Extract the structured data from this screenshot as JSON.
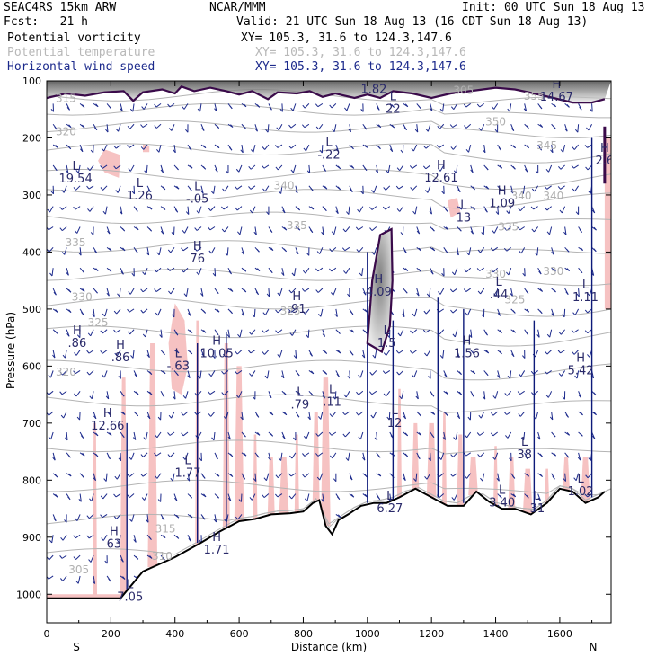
{
  "header": {
    "model": "SEAC4RS 15km ARW",
    "fcst": "Fcst:   21 h",
    "org": "NCAR/MMM",
    "init": "Init: 00 UTC Sun 18 Aug 13",
    "valid": "Valid: 21 UTC Sun 18 Aug 13 (16 CDT Sun 18 Aug 13)"
  },
  "legend": [
    {
      "name": "Potential vorticity",
      "xy": "XY= 105.3, 31.6 to 124.3,147.6",
      "color": "#000000"
    },
    {
      "name": "Potential temperature",
      "xy": "XY= 105.3, 31.6 to 124.3,147.6",
      "color": "#b8b8b8"
    },
    {
      "name": "Horizontal wind speed",
      "xy": "XY= 105.3, 31.6 to 124.3,147.6",
      "color": "#1c2a8c"
    }
  ],
  "chart_data": {
    "type": "cross-section",
    "xlabel": "Distance (km)",
    "ylabel": "Pressure (hPa)",
    "xlim": [
      0,
      1760
    ],
    "ylim": [
      100,
      1050
    ],
    "x_ticks": [
      0,
      200,
      400,
      600,
      800,
      1000,
      1200,
      1400,
      1600
    ],
    "y_ticks": [
      100,
      200,
      300,
      400,
      500,
      600,
      700,
      800,
      900,
      1000
    ],
    "endpoint_labels": {
      "left": "S",
      "right": "N"
    },
    "terrain_hPa": [
      [
        0,
        1007
      ],
      [
        150,
        1007
      ],
      [
        230,
        1007
      ],
      [
        300,
        960
      ],
      [
        400,
        935
      ],
      [
        480,
        910
      ],
      [
        540,
        890
      ],
      [
        600,
        872
      ],
      [
        650,
        868
      ],
      [
        700,
        860
      ],
      [
        760,
        858
      ],
      [
        800,
        855
      ],
      [
        830,
        840
      ],
      [
        850,
        835
      ],
      [
        870,
        880
      ],
      [
        890,
        895
      ],
      [
        910,
        870
      ],
      [
        940,
        860
      ],
      [
        980,
        845
      ],
      [
        1020,
        840
      ],
      [
        1060,
        840
      ],
      [
        1100,
        830
      ],
      [
        1150,
        815
      ],
      [
        1200,
        830
      ],
      [
        1250,
        845
      ],
      [
        1300,
        845
      ],
      [
        1340,
        820
      ],
      [
        1380,
        838
      ],
      [
        1420,
        850
      ],
      [
        1460,
        850
      ],
      [
        1510,
        860
      ],
      [
        1560,
        840
      ],
      [
        1600,
        815
      ],
      [
        1640,
        820
      ],
      [
        1680,
        840
      ],
      [
        1720,
        830
      ],
      [
        1740,
        820
      ]
    ],
    "pv_contour_hPa": [
      [
        0,
        130
      ],
      [
        60,
        122
      ],
      [
        120,
        126
      ],
      [
        180,
        120
      ],
      [
        240,
        118
      ],
      [
        270,
        135
      ],
      [
        300,
        120
      ],
      [
        360,
        115
      ],
      [
        400,
        122
      ],
      [
        420,
        110
      ],
      [
        460,
        118
      ],
      [
        510,
        112
      ],
      [
        560,
        118
      ],
      [
        600,
        124
      ],
      [
        640,
        118
      ],
      [
        690,
        132
      ],
      [
        720,
        120
      ],
      [
        780,
        122
      ],
      [
        820,
        118
      ],
      [
        860,
        128
      ],
      [
        900,
        122
      ],
      [
        960,
        130
      ],
      [
        1000,
        124
      ],
      [
        1040,
        130
      ],
      [
        1080,
        118
      ],
      [
        1140,
        122
      ],
      [
        1200,
        130
      ],
      [
        1260,
        122
      ],
      [
        1320,
        118
      ],
      [
        1400,
        112
      ],
      [
        1460,
        115
      ],
      [
        1520,
        122
      ],
      [
        1580,
        130
      ],
      [
        1640,
        138
      ],
      [
        1700,
        138
      ],
      [
        1740,
        132
      ]
    ],
    "pv_blob_hPa": [
      [
        1000,
        560
      ],
      [
        1015,
        450
      ],
      [
        1040,
        370
      ],
      [
        1075,
        360
      ],
      [
        1078,
        450
      ],
      [
        1070,
        530
      ],
      [
        1045,
        575
      ]
    ],
    "theta_labels": [
      {
        "text": "315",
        "x": 60,
        "p": 137
      },
      {
        "text": "320",
        "x": 60,
        "p": 195
      },
      {
        "text": "320",
        "x": 60,
        "p": 617
      },
      {
        "text": "325",
        "x": 160,
        "p": 530
      },
      {
        "text": "330",
        "x": 110,
        "p": 485
      },
      {
        "text": "335",
        "x": 90,
        "p": 390
      },
      {
        "text": "340",
        "x": 740,
        "p": 290
      },
      {
        "text": "335",
        "x": 780,
        "p": 360
      },
      {
        "text": "325",
        "x": 760,
        "p": 510
      },
      {
        "text": "330",
        "x": 1400,
        "p": 445
      },
      {
        "text": "330",
        "x": 1580,
        "p": 440
      },
      {
        "text": "325",
        "x": 1460,
        "p": 490
      },
      {
        "text": "335",
        "x": 1440,
        "p": 362
      },
      {
        "text": "340",
        "x": 1480,
        "p": 308
      },
      {
        "text": "340",
        "x": 1580,
        "p": 308
      },
      {
        "text": "345",
        "x": 1560,
        "p": 220
      },
      {
        "text": "350",
        "x": 1400,
        "p": 178
      },
      {
        "text": "355",
        "x": 1520,
        "p": 133
      },
      {
        "text": "305",
        "x": 1300,
        "p": 123
      },
      {
        "text": "315",
        "x": 370,
        "p": 892
      },
      {
        "text": "310",
        "x": 360,
        "p": 940
      },
      {
        "text": "305",
        "x": 100,
        "p": 963
      }
    ],
    "hl_labels": [
      {
        "type": "L",
        "value": "1.82",
        "x": 1020,
        "p": 115
      },
      {
        "type": "L",
        "value": "22",
        "x": 1080,
        "p": 150
      },
      {
        "type": "H",
        "value": "14.67",
        "x": 1590,
        "p": 128
      },
      {
        "type": "L",
        "value": "-.22",
        "x": 880,
        "p": 230
      },
      {
        "type": "H",
        "value": "12.61",
        "x": 1230,
        "p": 270
      },
      {
        "type": "H",
        "value": "2.6",
        "x": 1740,
        "p": 240
      },
      {
        "type": "L",
        "value": "19.54",
        "x": 90,
        "p": 272
      },
      {
        "type": "L",
        "value": "1.26",
        "x": 290,
        "p": 302
      },
      {
        "type": "L",
        "value": "-.05",
        "x": 470,
        "p": 307
      },
      {
        "type": "H",
        "value": "1.09",
        "x": 1420,
        "p": 315
      },
      {
        "type": "L",
        "value": "13",
        "x": 1300,
        "p": 340
      },
      {
        "type": "H",
        "value": "76",
        "x": 470,
        "p": 412
      },
      {
        "type": "H",
        "value": "4.09",
        "x": 1035,
        "p": 470
      },
      {
        "type": "L",
        "value": ".44",
        "x": 1410,
        "p": 475
      },
      {
        "type": "H",
        "value": ".91",
        "x": 780,
        "p": 500
      },
      {
        "type": "L",
        "value": "1.11",
        "x": 1680,
        "p": 480
      },
      {
        "type": "H",
        "value": ".86",
        "x": 95,
        "p": 560
      },
      {
        "type": "H",
        "value": ".86",
        "x": 230,
        "p": 585
      },
      {
        "type": "L",
        "value": "1.5",
        "x": 1060,
        "p": 560
      },
      {
        "type": "H",
        "value": "1.56",
        "x": 1310,
        "p": 578
      },
      {
        "type": "H",
        "value": "10.05",
        "x": 530,
        "p": 578
      },
      {
        "type": "L",
        "value": "-.63",
        "x": 410,
        "p": 600
      },
      {
        "type": "H",
        "value": "5.42",
        "x": 1665,
        "p": 608
      },
      {
        "type": "L",
        "value": ".79",
        "x": 790,
        "p": 668
      },
      {
        "type": "L",
        "value": ".11",
        "x": 890,
        "p": 663
      },
      {
        "type": "L",
        "value": "12",
        "x": 1085,
        "p": 700
      },
      {
        "type": "H",
        "value": "12.66",
        "x": 190,
        "p": 705
      },
      {
        "type": "L",
        "value": "38",
        "x": 1490,
        "p": 755
      },
      {
        "type": "L",
        "value": "1.77",
        "x": 440,
        "p": 788
      },
      {
        "type": "L",
        "value": "1.02",
        "x": 1665,
        "p": 820
      },
      {
        "type": "L",
        "value": "3.40",
        "x": 1420,
        "p": 840
      },
      {
        "type": "L",
        "value": "6.27",
        "x": 1070,
        "p": 850
      },
      {
        "type": "H",
        "value": "63",
        "x": 210,
        "p": 912
      },
      {
        "type": "H",
        "value": "1.71",
        "x": 530,
        "p": 922
      },
      {
        "type": "L",
        "value": "7.05",
        "x": 260,
        "p": 1005
      },
      {
        "type": "L",
        "value": "31",
        "x": 1530,
        "p": 850
      }
    ]
  }
}
